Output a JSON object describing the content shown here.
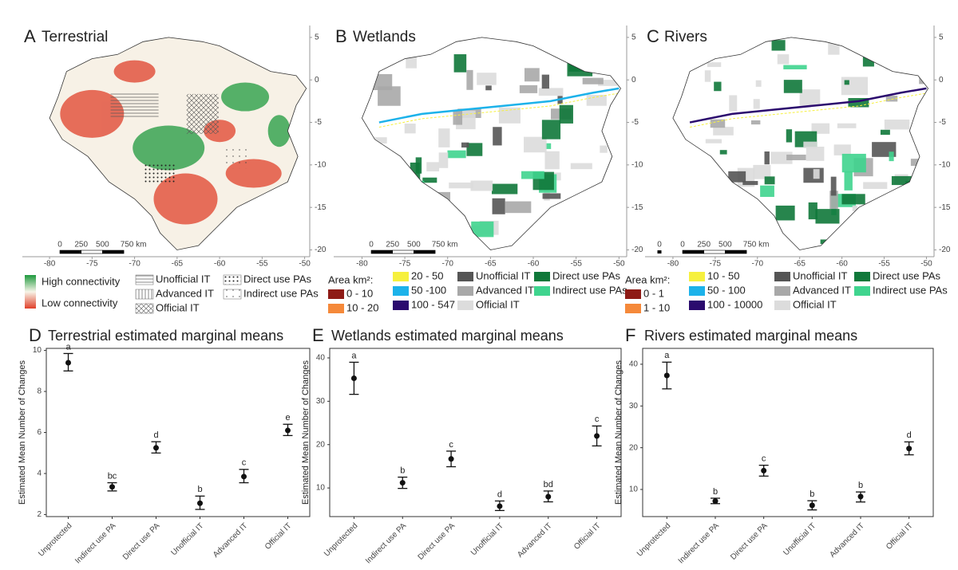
{
  "chart_data": [
    {
      "type": "map",
      "panel": "A",
      "title": "Terrestrial",
      "xlim": [
        -83.2,
        -49.4
      ],
      "ylim": [
        -20.8,
        6.4
      ],
      "xticks": [
        -80,
        -75,
        -70,
        -65,
        -60,
        -55,
        -50
      ],
      "yticks": [
        5,
        0,
        -5,
        -10,
        -15,
        -20
      ],
      "scale_bar": [
        "0",
        "250",
        "500",
        "750 km"
      ],
      "legend": [
        {
          "label": "High connectivity",
          "color": "#1f9a3e"
        },
        {
          "label": "Low connectivity",
          "color": "#e0402a"
        },
        {
          "label": "Unofficial IT"
        },
        {
          "label": "Advanced IT"
        },
        {
          "label": "Official IT"
        },
        {
          "label": "Direct use PAs"
        },
        {
          "label": "Indirect use PAs"
        }
      ]
    },
    {
      "type": "map",
      "panel": "B",
      "title": "Wetlands",
      "xlim": [
        -83.3,
        -49.1
      ],
      "ylim": [
        -20.8,
        6.4
      ],
      "xticks": [
        -80,
        -75,
        -70,
        -65,
        -60,
        -55,
        -50
      ],
      "yticks": [
        5,
        0,
        -5,
        -10,
        -15,
        -20
      ],
      "scale_bar": [
        "0",
        "250",
        "500",
        "750 km"
      ],
      "legend_title": "Area km²:",
      "legend": [
        {
          "label": "0 - 10",
          "color": "#8e1b16"
        },
        {
          "label": "10 - 20",
          "color": "#f5893a"
        },
        {
          "label": "20 - 50",
          "color": "#f6f03e"
        },
        {
          "label": "50 -100",
          "color": "#1cb2ea"
        },
        {
          "label": "100 - 547",
          "color": "#2b0b6e"
        },
        {
          "label": "Unofficial IT",
          "color": "#555555"
        },
        {
          "label": "Advanced IT",
          "color": "#a8a8a8"
        },
        {
          "label": "Official IT",
          "color": "#dcdcdc"
        },
        {
          "label": "Direct use PAs",
          "color": "#10783a"
        },
        {
          "label": "Indirect use PAs",
          "color": "#3fd48e"
        }
      ]
    },
    {
      "type": "map",
      "panel": "C",
      "title": "Rivers",
      "xlim": [
        -83.3,
        -49.1
      ],
      "ylim": [
        -20.8,
        6.4
      ],
      "xticks": [
        -80,
        -75,
        -70,
        -65,
        -60,
        -55,
        -50
      ],
      "yticks": [
        5,
        0,
        -5,
        -10,
        -15,
        -20
      ],
      "scale_bar": [
        "0",
        "0",
        "250",
        "500",
        "750 km"
      ],
      "legend_title": "Area km²:",
      "legend": [
        {
          "label": "0 - 1",
          "color": "#8e1b16"
        },
        {
          "label": "1 - 10",
          "color": "#f5893a"
        },
        {
          "label": "10 - 50",
          "color": "#f6f03e"
        },
        {
          "label": "50 - 100",
          "color": "#1cb2ea"
        },
        {
          "label": "100 - 10000",
          "color": "#2b0b6e"
        },
        {
          "label": "Unofficial IT",
          "color": "#555555"
        },
        {
          "label": "Advanced IT",
          "color": "#a8a8a8"
        },
        {
          "label": "Official IT",
          "color": "#dcdcdc"
        },
        {
          "label": "Direct use PAs",
          "color": "#10783a"
        },
        {
          "label": "Indirect use PAs",
          "color": "#3fd48e"
        }
      ]
    },
    {
      "type": "errorbar",
      "panel": "D",
      "title": "Terrestrial estimated marginal means",
      "y_label": "Estimated Mean Number of Changes",
      "categories": [
        "Unprotected",
        "Indirect use PA",
        "Direct use PA",
        "Unofficial IT",
        "Advanced IT",
        "Official IT"
      ],
      "values": [
        9.4,
        3.35,
        5.25,
        2.55,
        3.85,
        6.1
      ],
      "lower": [
        9.0,
        3.15,
        5.0,
        2.25,
        3.55,
        5.85
      ],
      "upper": [
        9.85,
        3.55,
        5.55,
        2.9,
        4.2,
        6.4
      ],
      "letters": [
        "a",
        "bc",
        "d",
        "b",
        "c",
        "e"
      ],
      "ylim": [
        1.9,
        10.1
      ],
      "yticks": [
        2,
        4,
        6,
        8,
        10
      ],
      "color": "#111111"
    },
    {
      "type": "errorbar",
      "panel": "E",
      "title": "Wetlands estimated marginal means",
      "y_label": "Estimated Mean Number of Changes",
      "categories": [
        "Unprotected",
        "Indirect use PA",
        "Direct use PA",
        "Unofficial IT",
        "Advanced IT",
        "Official IT"
      ],
      "values": [
        35.3,
        11.2,
        16.7,
        5.8,
        8.0,
        22.0
      ],
      "lower": [
        31.6,
        9.9,
        14.9,
        4.8,
        6.8,
        19.7
      ],
      "upper": [
        39.0,
        12.5,
        18.5,
        7.0,
        9.3,
        24.3
      ],
      "letters": [
        "a",
        "b",
        "c",
        "d",
        "bd",
        "c"
      ],
      "ylim": [
        3.4,
        42.2
      ],
      "yticks": [
        10,
        20,
        30,
        40
      ],
      "color": "#111111"
    },
    {
      "type": "errorbar",
      "panel": "F",
      "title": "Rivers estimated marginal means",
      "y_label": "Estimated Mean Number of Changes",
      "categories": [
        "Unprotected",
        "Indirect use PA",
        "Direct use PA",
        "Unofficial IT",
        "Advanced IT",
        "Official IT"
      ],
      "values": [
        37.3,
        7.2,
        14.5,
        6.2,
        8.3,
        19.8
      ],
      "lower": [
        34.1,
        6.6,
        13.2,
        5.1,
        7.0,
        18.3
      ],
      "upper": [
        40.5,
        7.9,
        15.8,
        7.3,
        9.4,
        21.4
      ],
      "letters": [
        "a",
        "b",
        "c",
        "b",
        "b",
        "d"
      ],
      "ylim": [
        3.5,
        43.8
      ],
      "yticks": [
        10,
        20,
        30,
        40
      ],
      "color": "#111111"
    }
  ]
}
